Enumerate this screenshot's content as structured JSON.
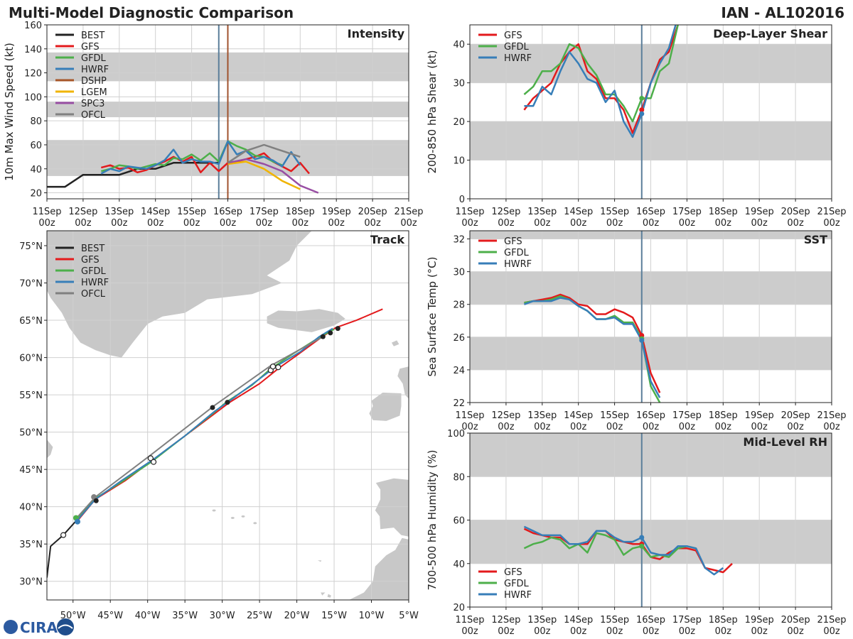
{
  "header": {
    "title": "Multi-Model Diagnostic Comparison",
    "storm": "IAN - AL102016"
  },
  "logo": {
    "text": "CIRA"
  },
  "colors": {
    "BEST": "#222222",
    "GFS": "#e31a1c",
    "GFDL": "#4daf4a",
    "HWRF": "#377eb8",
    "DSHP": "#a65628",
    "LGEM": "#f0b400",
    "SPC3": "#984ea3",
    "OFCL": "#808080",
    "band": "#cccccc",
    "land": "#c8c8c8",
    "grid": "#d0d0d0",
    "init_line": "#5b7e9a",
    "dshp_line": "#a0522d"
  },
  "time_axis": {
    "ticks": [
      11,
      12,
      13,
      14,
      15,
      16,
      17,
      18,
      19,
      20,
      21
    ],
    "labels": [
      "11Sep",
      "12Sep",
      "13Sep",
      "14Sep",
      "15Sep",
      "16Sep",
      "17Sep",
      "18Sep",
      "19Sep",
      "20Sep",
      "21Sep"
    ],
    "sublabel": "00z"
  },
  "chart_data": [
    {
      "id": "intensity",
      "type": "line",
      "title": "Intensity",
      "ylabel": "10m Max Wind Speed (kt)",
      "xlim": [
        11,
        21
      ],
      "ylim": [
        15,
        160
      ],
      "yticks": [
        20,
        40,
        60,
        80,
        100,
        120,
        140,
        160
      ],
      "bands": [
        [
          34,
          64
        ],
        [
          83,
          96
        ],
        [
          113,
          137
        ]
      ],
      "vlines": [
        {
          "x": 15.75,
          "color": "init_line"
        },
        {
          "x": 16.0,
          "color": "dshp_line"
        }
      ],
      "legend": [
        "BEST",
        "GFS",
        "GFDL",
        "HWRF",
        "DSHP",
        "LGEM",
        "SPC3",
        "OFCL"
      ],
      "series": [
        {
          "name": "BEST",
          "x": [
            11.0,
            11.5,
            12.0,
            12.5,
            13.0,
            13.5,
            14.0,
            14.5,
            15.0,
            15.5,
            15.75
          ],
          "y": [
            25,
            25,
            35,
            35,
            35,
            40,
            40,
            45,
            45,
            45,
            45
          ]
        },
        {
          "name": "GFS",
          "x": [
            12.5,
            12.75,
            13.0,
            13.25,
            13.5,
            13.75,
            14.0,
            14.25,
            14.5,
            14.75,
            15.0,
            15.25,
            15.5,
            15.75,
            16.0,
            16.25,
            16.5,
            16.75,
            17.0,
            17.25,
            17.5,
            17.75,
            18.0,
            18.25
          ],
          "y": [
            41,
            43,
            40,
            41,
            37,
            39,
            43,
            46,
            50,
            46,
            50,
            37,
            45,
            38,
            45,
            46,
            48,
            50,
            53,
            46,
            42,
            38,
            45,
            36
          ]
        },
        {
          "name": "GFDL",
          "x": [
            12.5,
            12.75,
            13.0,
            13.25,
            13.5,
            13.75,
            14.0,
            14.25,
            14.5,
            14.75,
            15.0,
            15.25,
            15.5,
            15.75,
            16.0,
            16.25,
            16.5,
            16.75,
            17.0,
            17.25,
            17.5
          ],
          "y": [
            38,
            40,
            43,
            42,
            40,
            42,
            44,
            43,
            49,
            48,
            52,
            47,
            53,
            46,
            63,
            59,
            56,
            51,
            50,
            46,
            43
          ]
        },
        {
          "name": "HWRF",
          "x": [
            12.5,
            12.75,
            13.0,
            13.25,
            13.5,
            13.75,
            14.0,
            14.25,
            14.5,
            14.75,
            15.0,
            15.25,
            15.5,
            15.75,
            16.0,
            16.25,
            16.5,
            16.75,
            17.0,
            17.25,
            17.5,
            17.75,
            18.0
          ],
          "y": [
            36,
            40,
            38,
            42,
            41,
            40,
            43,
            47,
            56,
            45,
            48,
            46,
            46,
            44,
            63,
            52,
            55,
            48,
            50,
            47,
            42,
            54,
            43
          ]
        },
        {
          "name": "LGEM",
          "x": [
            16.0,
            16.5,
            17.0,
            17.5,
            18.0
          ],
          "y": [
            44,
            46,
            40,
            30,
            23
          ]
        },
        {
          "name": "SPC3",
          "x": [
            16.0,
            16.5,
            17.0,
            17.5,
            18.0,
            18.5
          ],
          "y": [
            45,
            48,
            44,
            38,
            26,
            20
          ]
        },
        {
          "name": "OFCL",
          "x": [
            16.0,
            16.5,
            17.0,
            17.5,
            18.0
          ],
          "y": [
            45,
            55,
            60,
            55,
            50
          ]
        }
      ]
    },
    {
      "id": "shear",
      "type": "line",
      "title": "Deep-Layer Shear",
      "ylabel": "200-850 hPa Shear (kt)",
      "xlim": [
        11,
        21
      ],
      "ylim": [
        0,
        45
      ],
      "yticks": [
        0,
        10,
        20,
        30,
        40
      ],
      "bands": [
        [
          10,
          20
        ],
        [
          30,
          40
        ]
      ],
      "vlines": [
        {
          "x": 15.75,
          "color": "init_line"
        }
      ],
      "legend": [
        "GFS",
        "GFDL",
        "HWRF"
      ],
      "series": [
        {
          "name": "GFS",
          "x": [
            12.5,
            12.75,
            13.0,
            13.25,
            13.5,
            13.75,
            14.0,
            14.25,
            14.5,
            14.75,
            15.0,
            15.25,
            15.5,
            15.75,
            16.0,
            16.25,
            16.5,
            16.75,
            17.0
          ],
          "y": [
            23,
            26,
            28,
            30,
            35,
            38,
            40,
            33,
            31,
            26,
            26,
            23,
            17,
            23,
            30,
            36,
            38,
            45,
            50
          ]
        },
        {
          "name": "GFDL",
          "x": [
            12.5,
            12.75,
            13.0,
            13.25,
            13.5,
            13.75,
            14.0,
            14.25,
            14.5,
            14.75,
            15.0,
            15.25,
            15.5,
            15.75,
            16.0,
            16.25,
            16.5,
            16.75,
            17.0
          ],
          "y": [
            27,
            29,
            33,
            33,
            35,
            40,
            39,
            35,
            32,
            27,
            27,
            24,
            20,
            26,
            26,
            33,
            35,
            45,
            50
          ]
        },
        {
          "name": "HWRF",
          "x": [
            12.5,
            12.75,
            13.0,
            13.25,
            13.5,
            13.75,
            14.0,
            14.25,
            14.5,
            14.75,
            15.0,
            15.25,
            15.5,
            15.75,
            16.0,
            16.25,
            16.5,
            16.75,
            17.0
          ],
          "y": [
            24,
            24,
            29,
            27,
            33,
            38,
            35,
            31,
            30,
            25,
            28,
            20,
            16,
            22,
            30,
            35,
            39,
            47,
            52
          ]
        }
      ]
    },
    {
      "id": "sst",
      "type": "line",
      "title": "SST",
      "ylabel": "Sea Surface Temp (°C)",
      "xlim": [
        11,
        21
      ],
      "ylim": [
        22,
        32.5
      ],
      "yticks": [
        22,
        24,
        26,
        28,
        30,
        32
      ],
      "bands": [
        [
          24,
          26
        ],
        [
          28,
          30
        ],
        [
          32,
          32.5
        ]
      ],
      "vlines": [
        {
          "x": 15.75,
          "color": "init_line"
        }
      ],
      "legend": [
        "GFS",
        "GFDL",
        "HWRF"
      ],
      "series": [
        {
          "name": "GFS",
          "x": [
            12.5,
            12.75,
            13.0,
            13.25,
            13.5,
            13.75,
            14.0,
            14.25,
            14.5,
            14.75,
            15.0,
            15.25,
            15.5,
            15.75,
            16.0,
            16.25
          ],
          "y": [
            28.1,
            28.2,
            28.3,
            28.4,
            28.6,
            28.4,
            28.0,
            27.9,
            27.4,
            27.4,
            27.7,
            27.5,
            27.2,
            26.1,
            23.8,
            22.6
          ]
        },
        {
          "name": "GFDL",
          "x": [
            12.5,
            12.75,
            13.0,
            13.25,
            13.5,
            13.75,
            14.0,
            14.25,
            14.5,
            14.75,
            15.0,
            15.25,
            15.5,
            15.75,
            16.0,
            16.25
          ],
          "y": [
            28.1,
            28.2,
            28.2,
            28.3,
            28.5,
            28.3,
            27.9,
            27.6,
            27.1,
            27.1,
            27.3,
            26.9,
            26.9,
            25.9,
            23.0,
            22.0
          ]
        },
        {
          "name": "HWRF",
          "x": [
            12.5,
            12.75,
            13.0,
            13.25,
            13.5,
            13.75,
            14.0,
            14.25,
            14.5,
            14.75,
            15.0,
            15.25,
            15.5,
            15.75,
            16.0,
            16.25
          ],
          "y": [
            28.0,
            28.2,
            28.2,
            28.2,
            28.4,
            28.3,
            27.9,
            27.6,
            27.1,
            27.1,
            27.2,
            26.8,
            26.8,
            25.8,
            23.3,
            22.3
          ]
        }
      ]
    },
    {
      "id": "rh",
      "type": "line",
      "title": "Mid-Level RH",
      "ylabel": "700-500 hPa Humidity (%)",
      "xlim": [
        11,
        21
      ],
      "ylim": [
        20,
        100
      ],
      "yticks": [
        20,
        40,
        60,
        80,
        100
      ],
      "bands": [
        [
          40,
          60
        ],
        [
          80,
          100
        ]
      ],
      "vlines": [
        {
          "x": 15.75,
          "color": "init_line"
        }
      ],
      "legend": [
        "GFS",
        "GFDL",
        "HWRF"
      ],
      "series": [
        {
          "name": "GFS",
          "x": [
            12.5,
            12.75,
            13.0,
            13.25,
            13.5,
            13.75,
            14.0,
            14.25,
            14.5,
            14.75,
            15.0,
            15.25,
            15.5,
            15.75,
            16.0,
            16.25,
            16.5,
            16.75,
            17.0,
            17.25,
            17.5,
            17.75,
            18.0,
            18.25
          ],
          "y": [
            56,
            54,
            53,
            52,
            52,
            49,
            49,
            49,
            55,
            55,
            51,
            50,
            49,
            49,
            43,
            42,
            45,
            47,
            47,
            46,
            38,
            37,
            36,
            40
          ]
        },
        {
          "name": "GFDL",
          "x": [
            12.5,
            12.75,
            13.0,
            13.25,
            13.5,
            13.75,
            14.0,
            14.25,
            14.5,
            14.75,
            15.0,
            15.25,
            15.5,
            15.75,
            16.0,
            16.25,
            16.5,
            16.75,
            17.0,
            17.25
          ],
          "y": [
            47,
            49,
            50,
            52,
            51,
            47,
            49,
            45,
            54,
            53,
            51,
            44,
            47,
            48,
            43,
            44,
            43,
            47,
            48,
            47
          ]
        },
        {
          "name": "HWRF",
          "x": [
            12.5,
            12.75,
            13.0,
            13.25,
            13.5,
            13.75,
            14.0,
            14.25,
            14.5,
            14.75,
            15.0,
            15.25,
            15.5,
            15.75,
            16.0,
            16.25,
            16.5,
            16.75,
            17.0,
            17.25,
            17.5,
            17.75,
            18.0
          ],
          "y": [
            57,
            55,
            53,
            53,
            53,
            49,
            49,
            50,
            55,
            55,
            52,
            50,
            50,
            52,
            45,
            44,
            44,
            48,
            48,
            47,
            38,
            35,
            38
          ]
        }
      ]
    },
    {
      "id": "track",
      "type": "scatter",
      "title": "Track",
      "xlim": [
        -53.5,
        -5
      ],
      "ylim": [
        27.5,
        77
      ],
      "xticks": [
        -50,
        -45,
        -40,
        -35,
        -30,
        -25,
        -20,
        -15,
        -10,
        -5
      ],
      "xticklabels": [
        "50°W",
        "45°W",
        "40°W",
        "35°W",
        "30°W",
        "25°W",
        "20°W",
        "15°W",
        "10°W",
        "5°W"
      ],
      "yticks": [
        30,
        35,
        40,
        45,
        50,
        55,
        60,
        65,
        70,
        75
      ],
      "yticklabels": [
        "30°N",
        "35°N",
        "40°N",
        "45°N",
        "50°N",
        "55°N",
        "60°N",
        "65°N",
        "70°N",
        "75°N"
      ],
      "legend": [
        "BEST",
        "GFS",
        "GFDL",
        "HWRF",
        "OFCL"
      ],
      "series": [
        {
          "name": "BEST",
          "x": [
            -53.5,
            -53.0,
            -51.3,
            -49.5
          ],
          "y": [
            30.5,
            34.7,
            36.2,
            38.2
          ]
        },
        {
          "name": "GFS",
          "x": [
            -49.5,
            -47.0,
            -43.0,
            -39.0,
            -35.0,
            -31.0,
            -29.0,
            -25.0,
            -22.5,
            -20.0,
            -17.0,
            -14.8,
            -12.0,
            -8.5
          ],
          "y": [
            38.0,
            41.0,
            43.5,
            46.5,
            49.5,
            52.5,
            54.0,
            56.5,
            58.5,
            60.3,
            62.5,
            64.0,
            65.0,
            66.5
          ]
        },
        {
          "name": "GFDL",
          "x": [
            -49.5,
            -47.2,
            -43.5,
            -39.5,
            -35.0,
            -31.0,
            -29.5,
            -26.0,
            -23.5,
            -20.5,
            -17.0,
            -15.0
          ],
          "y": [
            38.3,
            41.0,
            43.3,
            46.0,
            49.5,
            52.7,
            54.0,
            56.3,
            58.5,
            60.5,
            62.7,
            63.8
          ]
        },
        {
          "name": "HWRF",
          "x": [
            -49.5,
            -47.0,
            -43.5,
            -39.3,
            -35.0,
            -31.0,
            -29.0,
            -26.0,
            -22.8,
            -19.5,
            -17.0,
            -15.2
          ],
          "y": [
            38.1,
            41.0,
            43.5,
            46.3,
            49.5,
            52.8,
            54.2,
            56.4,
            58.8,
            60.8,
            62.8,
            63.9
          ]
        },
        {
          "name": "OFCL",
          "x": [
            -49.5,
            -47.0,
            -39.5,
            -31.0,
            -23.5,
            -16.5
          ],
          "y": [
            38.5,
            41.3,
            47.0,
            53.6,
            58.9,
            62.8
          ]
        }
      ],
      "markers_filled": {
        "x": [
          -46.9,
          -31.3,
          -29.3,
          -16.5,
          -15.5,
          -14.5
        ],
        "y": [
          40.8,
          53.3,
          54.0,
          62.8,
          63.3,
          63.9
        ]
      },
      "markers_open": {
        "x": [
          -51.3,
          -39.6,
          -39.2,
          -23.5,
          -23.2,
          -22.5
        ],
        "y": [
          36.2,
          46.5,
          46.0,
          58.3,
          58.8,
          58.7
        ]
      },
      "markers_dot": [
        {
          "name": "GFDL",
          "x": -49.6,
          "y": 38.5
        },
        {
          "name": "HWRF",
          "x": -49.4,
          "y": 38.0
        },
        {
          "name": "OFCL",
          "x": -47.2,
          "y": 41.3
        }
      ]
    }
  ]
}
